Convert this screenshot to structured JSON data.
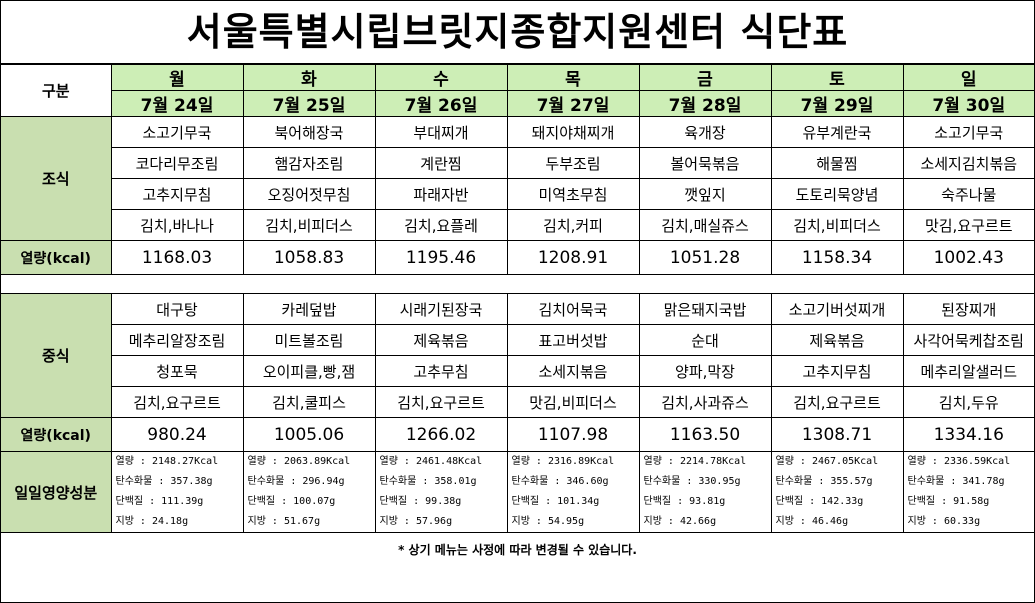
{
  "title": "서울특별시립브릿지종합지원센터  식단표",
  "header": {
    "category_label": "구분",
    "days": [
      {
        "day": "월",
        "date": "7월 24일"
      },
      {
        "day": "화",
        "date": "7월 25일"
      },
      {
        "day": "수",
        "date": "7월 26일"
      },
      {
        "day": "목",
        "date": "7월 27일"
      },
      {
        "day": "금",
        "date": "7월 28일"
      },
      {
        "day": "토",
        "date": "7월 29일"
      },
      {
        "day": "일",
        "date": "7월 30일"
      }
    ]
  },
  "breakfast": {
    "label": "조식",
    "rows": [
      [
        "소고기무국",
        "북어해장국",
        "부대찌개",
        "돼지야채찌개",
        "육개장",
        "유부계란국",
        "소고기무국"
      ],
      [
        "코다리무조림",
        "햄감자조림",
        "계란찜",
        "두부조림",
        "볼어묵볶음",
        "해물찜",
        "소세지김치볶음"
      ],
      [
        "고추지무침",
        "오징어젓무침",
        "파래자반",
        "미역초무침",
        "깻잎지",
        "도토리묵양념",
        "숙주나물"
      ],
      [
        "김치,바나나",
        "김치,비피더스",
        "김치,요플레",
        "김치,커피",
        "김치,매실쥬스",
        "김치,비피더스",
        "맛김,요구르트"
      ]
    ],
    "kcal_label": "열량(kcal)",
    "kcal": [
      "1168.03",
      "1058.83",
      "1195.46",
      "1208.91",
      "1051.28",
      "1158.34",
      "1002.43"
    ]
  },
  "lunch": {
    "label": "중식",
    "rows": [
      [
        "대구탕",
        "카레덮밥",
        "시래기된장국",
        "김치어묵국",
        "맑은돼지국밥",
        "소고기버섯찌개",
        "된장찌개"
      ],
      [
        "메추리알장조림",
        "미트볼조림",
        "제육볶음",
        "표고버섯밥",
        "순대",
        "제육볶음",
        "사각어묵케찹조림"
      ],
      [
        "청포묵",
        "오이피클,빵,잼",
        "고추무침",
        "소세지볶음",
        "양파,막장",
        "고추지무침",
        "메추리알샐러드"
      ],
      [
        "김치,요구르트",
        "김치,쿨피스",
        "김치,요구르트",
        "맛김,비피더스",
        "김치,사과쥬스",
        "김치,요구르트",
        "김치,두유"
      ]
    ],
    "kcal_label": "열량(kcal)",
    "kcal": [
      "980.24",
      "1005.06",
      "1266.02",
      "1107.98",
      "1163.50",
      "1308.71",
      "1334.16"
    ]
  },
  "nutrition": {
    "label": "일일영양성분",
    "days": [
      [
        "열량 : 2148.27Kcal",
        "탄수화물 : 357.38g",
        "단백질 : 111.39g",
        "지방 : 24.18g"
      ],
      [
        "열량 : 2063.89Kcal",
        "탄수화물 : 296.94g",
        "단백질 : 100.07g",
        "지방 : 51.67g"
      ],
      [
        "열량 : 2461.48Kcal",
        "탄수화물 : 358.01g",
        "단백질 : 99.38g",
        "지방 : 57.96g"
      ],
      [
        "열량 : 2316.89Kcal",
        "탄수화물 : 346.60g",
        "단백질 : 101.34g",
        "지방 : 54.95g"
      ],
      [
        "열량 : 2214.78Kcal",
        "탄수화물 : 330.95g",
        "단백질 : 93.81g",
        "지방 : 42.66g"
      ],
      [
        "열량 : 2467.05Kcal",
        "탄수화물 : 355.57g",
        "단백질 : 142.33g",
        "지방 : 46.46g"
      ],
      [
        "열량 : 2336.59Kcal",
        "탄수화물 : 341.78g",
        "단백질 : 91.58g",
        "지방 : 60.33g"
      ]
    ]
  },
  "note": "* 상기 메뉴는 사정에 따라 변경될 수 있습니다.",
  "colors": {
    "header_green": "#cdeeb6",
    "category_green": "#c9dfb0"
  }
}
